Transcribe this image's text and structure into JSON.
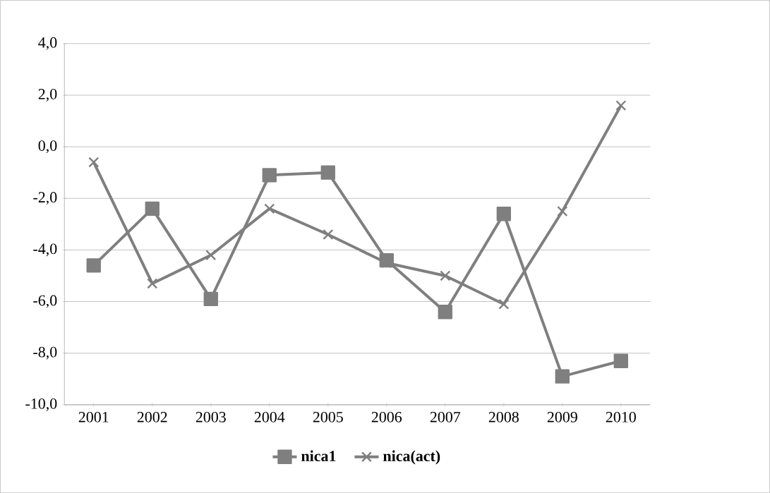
{
  "chart_data": {
    "type": "line",
    "categories": [
      "2001",
      "2002",
      "2003",
      "2004",
      "2005",
      "2006",
      "2007",
      "2008",
      "2009",
      "2010"
    ],
    "series": [
      {
        "name": "nica1",
        "color": "#7f7f7f",
        "marker": "square",
        "values": [
          -4.6,
          -2.4,
          -5.9,
          -1.1,
          -1.0,
          -4.4,
          -6.4,
          -2.6,
          -8.9,
          -8.3
        ]
      },
      {
        "name": "nica(act)",
        "color": "#7f7f7f",
        "marker": "cross",
        "values": [
          -0.6,
          -5.3,
          -4.2,
          -2.4,
          -3.4,
          -4.5,
          -5.0,
          -6.1,
          -2.5,
          1.6
        ]
      }
    ],
    "ylim": [
      -10,
      4
    ],
    "yticks": [
      {
        "value": -10,
        "label": "-10,0"
      },
      {
        "value": -8,
        "label": "-8,0"
      },
      {
        "value": -6,
        "label": "-6,0"
      },
      {
        "value": -4,
        "label": "-4,0"
      },
      {
        "value": -2,
        "label": "-2,0"
      },
      {
        "value": 0,
        "label": "0,0"
      },
      {
        "value": 2,
        "label": "2,0"
      },
      {
        "value": 4,
        "label": "4,0"
      }
    ],
    "grid": "y",
    "legend": "bottom"
  }
}
